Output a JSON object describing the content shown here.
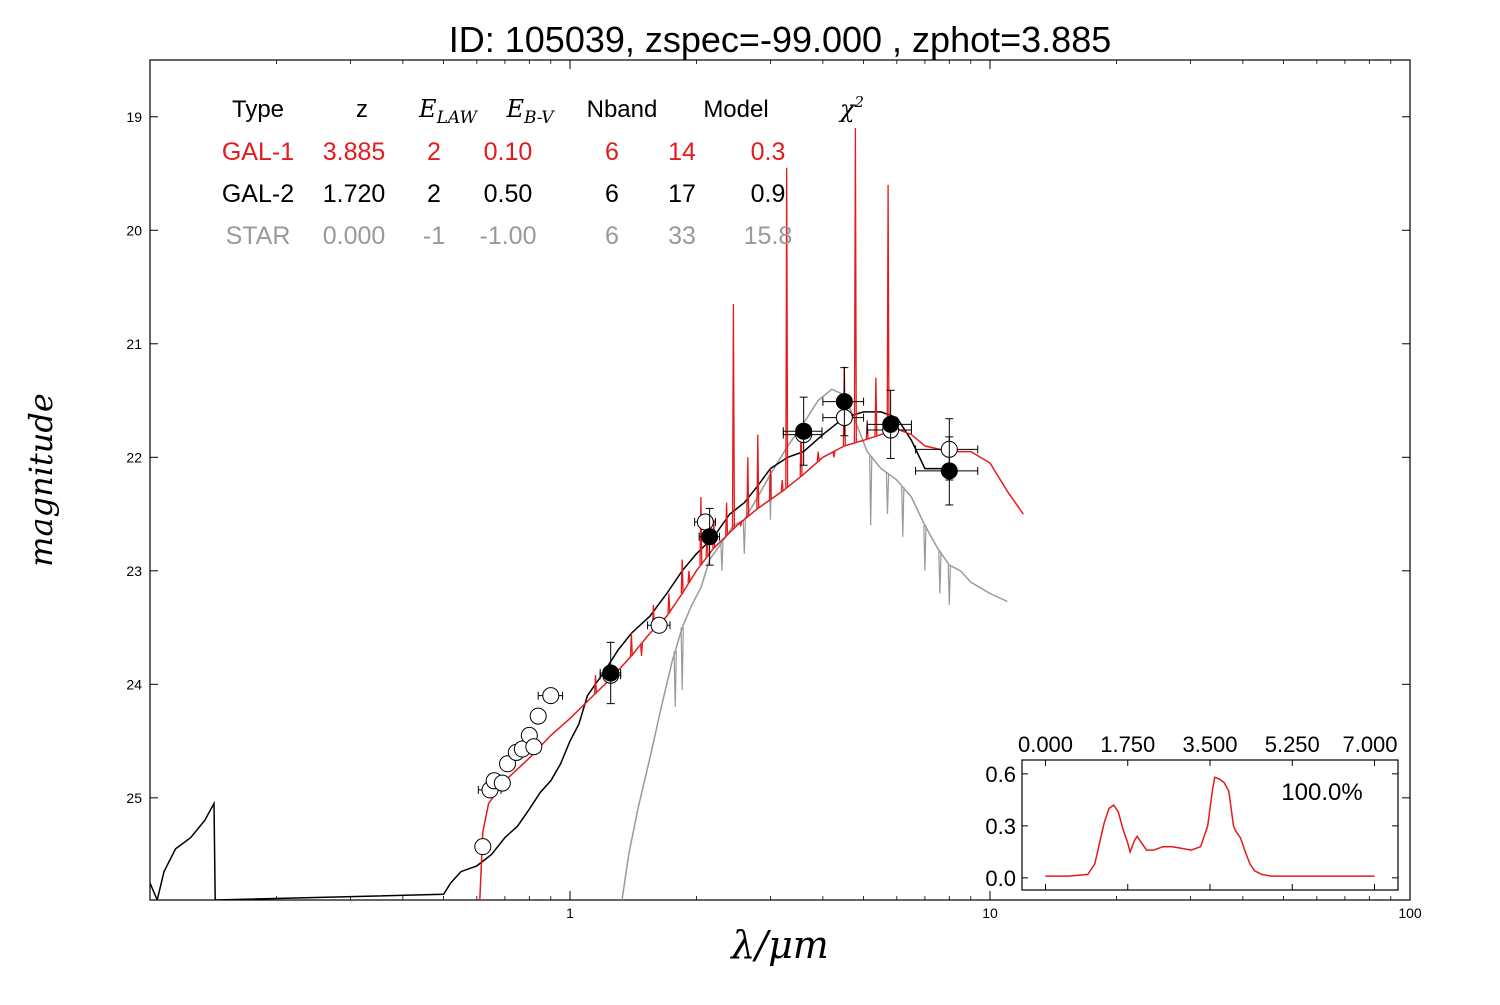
{
  "chart_data": {
    "type": "line",
    "title": "ID:  105039, zspec=-99.000 , zphot=3.885",
    "xlabel": "λ/μm",
    "ylabel": "magnitude",
    "x_scale": "log",
    "xlim": [
      0.1,
      100
    ],
    "ylim": [
      25.9,
      18.5
    ],
    "y_inverted": true,
    "x_ticks": [
      {
        "value": 1,
        "label": "1"
      },
      {
        "value": 10,
        "label": "10"
      },
      {
        "value": 100,
        "label": "100"
      }
    ],
    "y_ticks": [
      {
        "value": 19,
        "label": "19"
      },
      {
        "value": 20,
        "label": "20"
      },
      {
        "value": 21,
        "label": "21"
      },
      {
        "value": 22,
        "label": "22"
      },
      {
        "value": 23,
        "label": "23"
      },
      {
        "value": 24,
        "label": "24"
      },
      {
        "value": 25,
        "label": "25"
      }
    ],
    "fit_table": {
      "headers": [
        "Type",
        "z",
        "E_LAW",
        "E_B-V",
        "Nband",
        "Model",
        "χ²"
      ],
      "rows": [
        {
          "type": "GAL-1",
          "z": "3.885",
          "elaw": "2",
          "ebv": "0.10",
          "nband": "6",
          "model": "14",
          "chi2": "0.3",
          "color": "#e41a1c"
        },
        {
          "type": "GAL-2",
          "z": "1.720",
          "elaw": "2",
          "ebv": "0.50",
          "nband": "6",
          "model": "17",
          "chi2": "0.9",
          "color": "#000000"
        },
        {
          "type": "STAR",
          "z": "0.000",
          "elaw": "-1",
          "ebv": "-1.00",
          "nband": "6",
          "model": "33",
          "chi2": "15.8",
          "color": "#999999"
        }
      ]
    },
    "series": [
      {
        "color": "#e41a1c",
        "points": [
          [
            0.61,
            25.9
          ],
          [
            0.62,
            25.3
          ],
          [
            0.64,
            25.05
          ],
          [
            0.7,
            24.85
          ],
          [
            0.8,
            24.65
          ],
          [
            0.9,
            24.45
          ],
          [
            1.0,
            24.3
          ],
          [
            1.1,
            24.15
          ],
          [
            1.25,
            23.95
          ],
          [
            1.4,
            23.75
          ],
          [
            1.55,
            23.55
          ],
          [
            1.7,
            23.4
          ],
          [
            1.85,
            23.2
          ],
          [
            2.0,
            23.0
          ],
          [
            2.2,
            22.8
          ],
          [
            2.5,
            22.6
          ],
          [
            2.8,
            22.45
          ],
          [
            3.2,
            22.3
          ],
          [
            3.6,
            22.15
          ],
          [
            4.0,
            22.0
          ],
          [
            4.5,
            21.9
          ],
          [
            5.0,
            21.85
          ],
          [
            5.5,
            21.8
          ],
          [
            6.0,
            21.75
          ],
          [
            6.5,
            21.8
          ],
          [
            7.0,
            21.9
          ],
          [
            8.0,
            21.95
          ],
          [
            9.0,
            21.95
          ],
          [
            10.0,
            22.05
          ],
          [
            11.0,
            22.3
          ],
          [
            12.0,
            22.5
          ]
        ],
        "emission_lines": [
          [
            1.15,
            23.92
          ],
          [
            1.4,
            23.55
          ],
          [
            1.48,
            23.75
          ],
          [
            1.58,
            23.3
          ],
          [
            1.72,
            23.2
          ],
          [
            1.85,
            22.9
          ],
          [
            1.92,
            23.0
          ],
          [
            2.05,
            22.35
          ],
          [
            2.12,
            22.65
          ],
          [
            2.2,
            22.55
          ],
          [
            2.36,
            22.4
          ],
          [
            2.45,
            20.65
          ],
          [
            2.55,
            22.6
          ],
          [
            2.65,
            22.0
          ],
          [
            2.8,
            21.8
          ],
          [
            3.0,
            22.1
          ],
          [
            3.2,
            22.2
          ],
          [
            3.28,
            19.45
          ],
          [
            3.55,
            21.7
          ],
          [
            3.9,
            21.95
          ],
          [
            4.25,
            22.0
          ],
          [
            4.5,
            21.2
          ],
          [
            4.78,
            19.1
          ],
          [
            5.1,
            21.7
          ],
          [
            5.35,
            21.3
          ],
          [
            5.72,
            19.6
          ]
        ]
      },
      {
        "color": "#000000",
        "points": [
          [
            0.1,
            25.75
          ],
          [
            0.104,
            25.9
          ],
          [
            0.108,
            25.65
          ],
          [
            0.115,
            25.45
          ],
          [
            0.125,
            25.35
          ],
          [
            0.135,
            25.2
          ],
          [
            0.142,
            25.05
          ],
          [
            0.143,
            25.9
          ],
          [
            0.5,
            25.85
          ],
          [
            0.52,
            25.75
          ],
          [
            0.55,
            25.65
          ],
          [
            0.6,
            25.6
          ],
          [
            0.65,
            25.5
          ],
          [
            0.7,
            25.35
          ],
          [
            0.75,
            25.25
          ],
          [
            0.8,
            25.1
          ],
          [
            0.85,
            24.95
          ],
          [
            0.9,
            24.85
          ],
          [
            0.95,
            24.7
          ],
          [
            1.0,
            24.5
          ],
          [
            1.05,
            24.35
          ],
          [
            1.1,
            24.1
          ],
          [
            1.2,
            23.9
          ],
          [
            1.3,
            23.7
          ],
          [
            1.4,
            23.55
          ],
          [
            1.55,
            23.4
          ],
          [
            1.7,
            23.2
          ],
          [
            1.85,
            23.0
          ],
          [
            2.0,
            22.85
          ],
          [
            2.2,
            22.7
          ],
          [
            2.4,
            22.5
          ],
          [
            2.6,
            22.4
          ],
          [
            2.8,
            22.25
          ],
          [
            3.0,
            22.1
          ],
          [
            3.3,
            22.0
          ],
          [
            3.6,
            21.95
          ],
          [
            4.0,
            21.8
          ],
          [
            4.5,
            21.65
          ],
          [
            5.0,
            21.6
          ],
          [
            5.5,
            21.6
          ],
          [
            6.0,
            21.65
          ],
          [
            6.5,
            21.85
          ],
          [
            7.0,
            22.1
          ],
          [
            7.5,
            22.1
          ],
          [
            8.0,
            22.1
          ]
        ]
      },
      {
        "color": "#999999",
        "points": [
          [
            1.33,
            25.9
          ],
          [
            1.38,
            25.5
          ],
          [
            1.45,
            25.1
          ],
          [
            1.55,
            24.65
          ],
          [
            1.65,
            24.2
          ],
          [
            1.75,
            23.8
          ],
          [
            1.85,
            23.5
          ],
          [
            1.95,
            23.3
          ],
          [
            2.05,
            23.15
          ],
          [
            2.15,
            22.9
          ],
          [
            2.3,
            22.75
          ],
          [
            2.45,
            22.6
          ],
          [
            2.6,
            22.55
          ],
          [
            2.8,
            22.35
          ],
          [
            3.0,
            22.15
          ],
          [
            3.3,
            21.9
          ],
          [
            3.6,
            21.7
          ],
          [
            3.9,
            21.5
          ],
          [
            4.2,
            21.4
          ],
          [
            4.5,
            21.45
          ],
          [
            4.8,
            21.7
          ],
          [
            5.1,
            21.95
          ],
          [
            5.5,
            22.1
          ],
          [
            6.0,
            22.2
          ],
          [
            6.5,
            22.35
          ],
          [
            7.0,
            22.6
          ],
          [
            7.5,
            22.8
          ],
          [
            8.0,
            22.95
          ],
          [
            8.5,
            23.0
          ],
          [
            9.0,
            23.1
          ],
          [
            10.0,
            23.2
          ],
          [
            11.0,
            23.27
          ]
        ],
        "dips": [
          [
            1.78,
            24.2
          ],
          [
            1.85,
            24.05
          ],
          [
            2.3,
            23.0
          ],
          [
            2.6,
            22.85
          ],
          [
            3.0,
            22.55
          ],
          [
            5.2,
            22.6
          ],
          [
            5.7,
            22.5
          ],
          [
            6.2,
            22.7
          ],
          [
            7.0,
            23.0
          ],
          [
            7.6,
            23.2
          ],
          [
            8.0,
            23.3
          ]
        ]
      }
    ],
    "observed_points": [
      {
        "x": 0.62,
        "y": 25.43,
        "xerr": 0.0,
        "yerr": 0.0
      },
      {
        "x": 0.645,
        "y": 24.93,
        "xerr": 0.04,
        "yerr": 0.0
      },
      {
        "x": 0.66,
        "y": 24.85,
        "xerr": 0.0,
        "yerr": 0.0
      },
      {
        "x": 0.69,
        "y": 24.87,
        "xerr": 0.0,
        "yerr": 0.0
      },
      {
        "x": 0.71,
        "y": 24.7,
        "xerr": 0.0,
        "yerr": 0.0
      },
      {
        "x": 0.745,
        "y": 24.6,
        "xerr": 0.0,
        "yerr": 0.0
      },
      {
        "x": 0.77,
        "y": 24.57,
        "xerr": 0.0,
        "yerr": 0.0
      },
      {
        "x": 0.8,
        "y": 24.45,
        "xerr": 0.0,
        "yerr": 0.0
      },
      {
        "x": 0.82,
        "y": 24.55,
        "xerr": 0.0,
        "yerr": 0.0
      },
      {
        "x": 0.84,
        "y": 24.28,
        "xerr": 0.03,
        "yerr": 0.0
      },
      {
        "x": 0.9,
        "y": 24.1,
        "xerr": 0.06,
        "yerr": 0.0
      },
      {
        "x": 1.25,
        "y": 23.92,
        "xerr": 0.07,
        "yerr": 0.0
      },
      {
        "x": 1.63,
        "y": 23.48,
        "xerr": 0.1,
        "yerr": 0.0
      },
      {
        "x": 2.1,
        "y": 22.57,
        "xerr": 0.12,
        "yerr": 0.0
      },
      {
        "x": 3.6,
        "y": 21.8,
        "xerr": 0.38,
        "yerr": 0.0
      },
      {
        "x": 4.5,
        "y": 21.65,
        "xerr": 0.5,
        "yerr": 0.0
      },
      {
        "x": 5.8,
        "y": 21.76,
        "xerr": 0.7,
        "yerr": 0.0
      },
      {
        "x": 8.0,
        "y": 21.93,
        "xerr": 1.35,
        "yerr": 0.27
      }
    ],
    "model_points": [
      {
        "x": 1.25,
        "y": 23.9,
        "xerr": 0.07,
        "yerr": 0.27
      },
      {
        "x": 2.15,
        "y": 22.7,
        "xerr": 0.12,
        "yerr": 0.25
      },
      {
        "x": 3.6,
        "y": 21.77,
        "xerr": 0.38,
        "yerr": 0.3
      },
      {
        "x": 4.5,
        "y": 21.51,
        "xerr": 0.5,
        "yerr": 0.3
      },
      {
        "x": 5.8,
        "y": 21.71,
        "xerr": 0.7,
        "yerr": 0.3
      },
      {
        "x": 8.0,
        "y": 22.12,
        "xerr": 1.35,
        "yerr": 0.3
      }
    ],
    "inset": {
      "type": "line",
      "color": "#e41a1c",
      "label": "100.0%",
      "xlim": [
        -0.5,
        7.5
      ],
      "ylim": [
        -0.07,
        0.68
      ],
      "x_ticks": [
        {
          "value": 0.0,
          "label": "0.000"
        },
        {
          "value": 1.75,
          "label": "1.750"
        },
        {
          "value": 3.5,
          "label": "3.500"
        },
        {
          "value": 5.25,
          "label": "5.250"
        },
        {
          "value": 7.0,
          "label": "7.000"
        }
      ],
      "y_ticks": [
        {
          "value": 0.0,
          "label": "0.0"
        },
        {
          "value": 0.3,
          "label": "0.3"
        },
        {
          "value": 0.6,
          "label": "0.6"
        }
      ],
      "points": [
        [
          0.0,
          0.01
        ],
        [
          0.5,
          0.01
        ],
        [
          0.9,
          0.02
        ],
        [
          1.05,
          0.08
        ],
        [
          1.15,
          0.2
        ],
        [
          1.25,
          0.32
        ],
        [
          1.35,
          0.4
        ],
        [
          1.45,
          0.42
        ],
        [
          1.55,
          0.38
        ],
        [
          1.65,
          0.28
        ],
        [
          1.75,
          0.2
        ],
        [
          1.8,
          0.15
        ],
        [
          1.9,
          0.22
        ],
        [
          1.95,
          0.24
        ],
        [
          2.05,
          0.2
        ],
        [
          2.15,
          0.16
        ],
        [
          2.3,
          0.16
        ],
        [
          2.5,
          0.18
        ],
        [
          2.7,
          0.18
        ],
        [
          2.9,
          0.17
        ],
        [
          3.1,
          0.16
        ],
        [
          3.3,
          0.18
        ],
        [
          3.45,
          0.3
        ],
        [
          3.55,
          0.5
        ],
        [
          3.6,
          0.58
        ],
        [
          3.7,
          0.57
        ],
        [
          3.8,
          0.55
        ],
        [
          3.9,
          0.5
        ],
        [
          4.0,
          0.3
        ],
        [
          4.05,
          0.27
        ],
        [
          4.15,
          0.23
        ],
        [
          4.25,
          0.15
        ],
        [
          4.35,
          0.08
        ],
        [
          4.45,
          0.04
        ],
        [
          4.6,
          0.02
        ],
        [
          4.8,
          0.01
        ],
        [
          6.0,
          0.01
        ],
        [
          7.0,
          0.01
        ]
      ]
    }
  }
}
